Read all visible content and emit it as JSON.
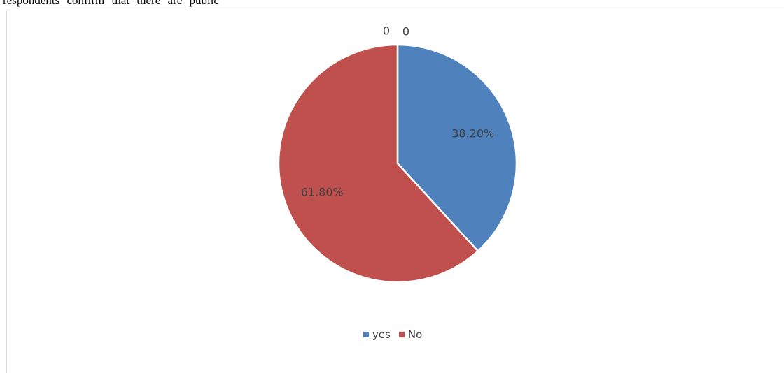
{
  "document": {
    "clipped_text": "respondents confirm that there are public"
  },
  "chart_data": {
    "type": "pie",
    "categories": [
      "yes",
      "No"
    ],
    "values": [
      38.2,
      61.8
    ],
    "data_labels": [
      "38.20%",
      "61.80%"
    ],
    "extra_labels": [
      "0",
      "0"
    ],
    "colors": [
      "#4f81bd",
      "#c0504d"
    ],
    "legend_position": "bottom",
    "legend": [
      {
        "name": "yes",
        "color": "#4f81bd"
      },
      {
        "name": "No",
        "color": "#c0504d"
      }
    ]
  }
}
